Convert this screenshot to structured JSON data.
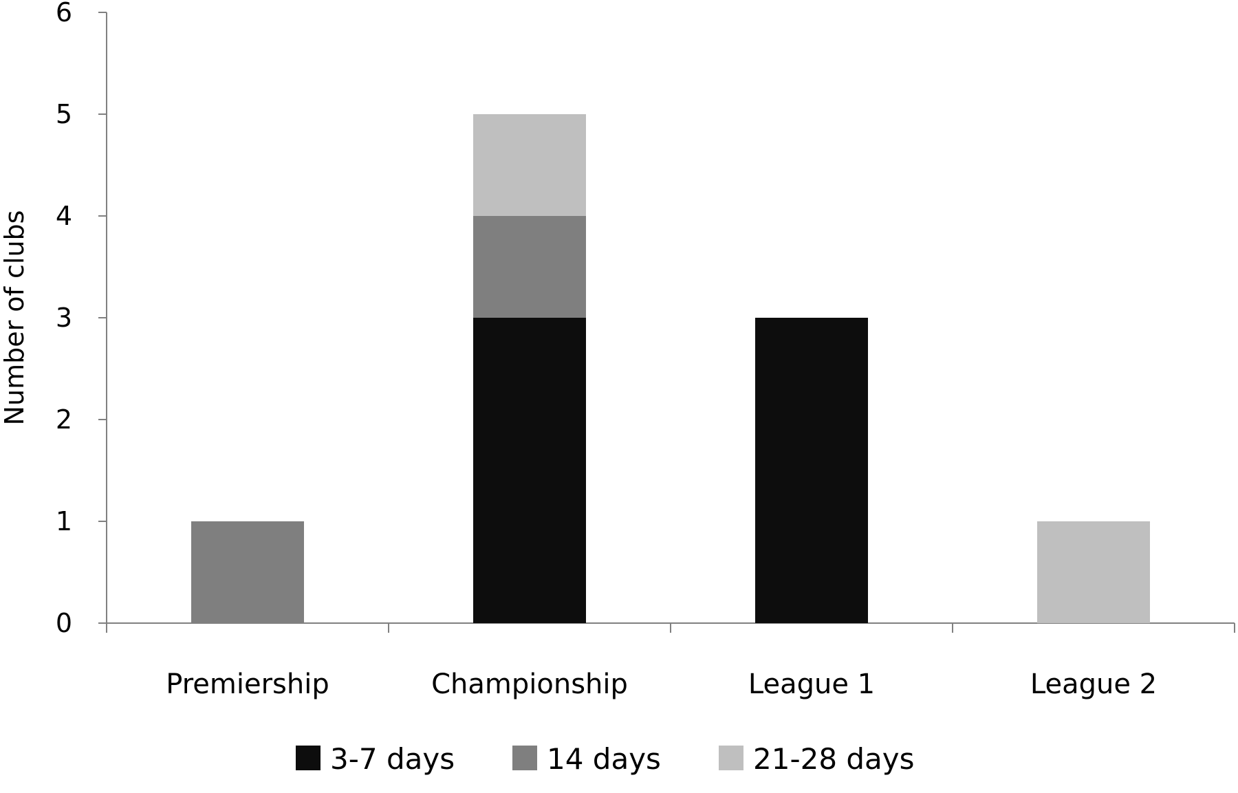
{
  "chart_data": {
    "type": "bar",
    "stacked": true,
    "title": "",
    "xlabel": "",
    "ylabel": "Number of clubs",
    "ylim": [
      0,
      6
    ],
    "yticks": [
      0,
      1,
      2,
      3,
      4,
      5,
      6
    ],
    "categories": [
      "Premiership",
      "Championship",
      "League 1",
      "League 2"
    ],
    "series": [
      {
        "name": "3-7 days",
        "color": "#0d0d0d",
        "values": [
          0,
          3,
          3,
          0
        ]
      },
      {
        "name": "14 days",
        "color": "#7f7f7f",
        "values": [
          1,
          1,
          0,
          0
        ]
      },
      {
        "name": "21-28 days",
        "color": "#bfbfbf",
        "values": [
          0,
          1,
          0,
          1
        ]
      }
    ],
    "grid": false,
    "legend": "bottom"
  }
}
